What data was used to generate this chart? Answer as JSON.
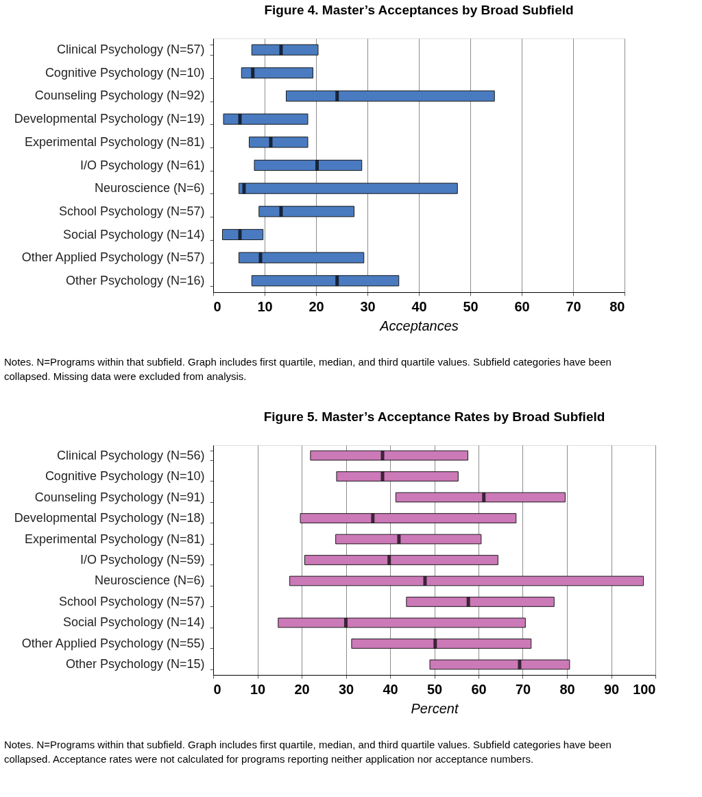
{
  "chart_data": [
    {
      "type": "box",
      "title": "Figure 4. Master’s Acceptances by Broad Subfield",
      "xlabel": "Acceptances",
      "orientation": "horizontal",
      "categories": [
        "Clinical Psychology (N=57)",
        "Cognitive Psychology (N=10)",
        "Counseling Psychology (N=92)",
        "Developmental Psychology (N=19)",
        "Experimental Psychology (N=81)",
        "I/O Psychology  (N=61)",
        "Neuroscience (N=6)",
        "School Psychology  (N=57)",
        "Social Psychology (N=14)",
        "Other Applied Psychology (N=57)",
        "Other Psychology (N=16)"
      ],
      "series": [
        {
          "color": "#4a7bc0",
          "boxes": [
            {
              "low": 7.5,
              "q1": 7.5,
              "median": 13.2,
              "q3": 20.4,
              "high": 20.4
            },
            {
              "low": 5.5,
              "q1": 5.5,
              "median": 7.7,
              "q3": 19.4,
              "high": 19.4
            },
            {
              "low": 14.2,
              "q1": 14.2,
              "median": 24.1,
              "q3": 54.7,
              "high": 54.7
            },
            {
              "low": 2.0,
              "q1": 2.0,
              "median": 5.2,
              "q3": 18.4,
              "high": 18.4
            },
            {
              "low": 7.0,
              "q1": 7.0,
              "median": 11.2,
              "q3": 18.4,
              "high": 18.4
            },
            {
              "low": 8.0,
              "q1": 8.0,
              "median": 20.2,
              "q3": 28.9,
              "high": 28.9
            },
            {
              "low": 5.0,
              "q1": 5.0,
              "median": 6.0,
              "q3": 47.5,
              "high": 47.5
            },
            {
              "low": 8.9,
              "q1": 8.9,
              "median": 13.2,
              "q3": 27.4,
              "high": 27.4
            },
            {
              "low": 1.8,
              "q1": 1.8,
              "median": 5.2,
              "q3": 9.7,
              "high": 9.7
            },
            {
              "low": 5.0,
              "q1": 5.0,
              "median": 9.2,
              "q3": 29.3,
              "high": 29.3
            },
            {
              "low": 7.5,
              "q1": 7.5,
              "median": 24.1,
              "q3": 36.1,
              "high": 36.1
            }
          ]
        }
      ],
      "xlim": [
        0,
        80
      ],
      "xticks": [
        0,
        10,
        20,
        30,
        40,
        50,
        60,
        70,
        80
      ],
      "grid": "x",
      "annotations": [
        "Notes. N=Programs within that subfield.   Graph includes first quartile, median, and third quartile values. Subfield categories have been collapsed. Missing data were excluded from analysis."
      ]
    },
    {
      "type": "box",
      "title": "Figure 5. Master’s Acceptance Rates by Broad Subfield",
      "xlabel": "Percent",
      "orientation": "horizontal",
      "categories": [
        "Clinical Psychology (N=56)",
        "Cognitive Psychology (N=10)",
        "Counseling Psychology (N=91)",
        "Developmental Psychology (N=18)",
        "Experimental Psychology (N=81)",
        "I/O Psychology (N=59)",
        "Neuroscience (N=6)",
        "School Psychology (N=57)",
        "Social Psychology (N=14)",
        "Other Applied Psychology (N=55)",
        "Other Psychology (N=15)"
      ],
      "series": [
        {
          "color": "#cc79b8",
          "boxes": [
            {
              "low": 22.0,
              "q1": 22.0,
              "median": 38.3,
              "q3": 57.6,
              "high": 57.6
            },
            {
              "low": 27.9,
              "q1": 27.9,
              "median": 38.3,
              "q3": 55.4,
              "high": 55.4
            },
            {
              "low": 41.3,
              "q1": 41.3,
              "median": 61.2,
              "q3": 79.6,
              "high": 79.6
            },
            {
              "low": 19.7,
              "q1": 19.7,
              "median": 36.1,
              "q3": 68.5,
              "high": 68.5
            },
            {
              "low": 27.7,
              "q1": 27.7,
              "median": 42.0,
              "q3": 60.6,
              "high": 60.6
            },
            {
              "low": 20.7,
              "q1": 20.7,
              "median": 39.8,
              "q3": 64.4,
              "high": 64.4
            },
            {
              "low": 17.3,
              "q1": 17.3,
              "median": 47.9,
              "q3": 97.3,
              "high": 97.3
            },
            {
              "low": 43.7,
              "q1": 43.7,
              "median": 57.7,
              "q3": 77.1,
              "high": 77.1
            },
            {
              "low": 14.7,
              "q1": 14.7,
              "median": 30.0,
              "q3": 70.6,
              "high": 70.6
            },
            {
              "low": 31.3,
              "q1": 31.3,
              "median": 50.2,
              "q3": 71.9,
              "high": 71.9
            },
            {
              "low": 49.0,
              "q1": 49.0,
              "median": 69.3,
              "q3": 80.6,
              "high": 80.6
            }
          ]
        }
      ],
      "xlim": [
        0,
        100
      ],
      "xticks": [
        0,
        10,
        20,
        30,
        40,
        50,
        60,
        70,
        80,
        90,
        100
      ],
      "grid": "x",
      "annotations": [
        "Notes. N=Programs within that subfield.  Graph includes first quartile, median, and third quartile values. Subfield categories have been collapsed. Acceptance rates were not calculated for programs reporting neither application nor acceptance numbers."
      ]
    }
  ]
}
